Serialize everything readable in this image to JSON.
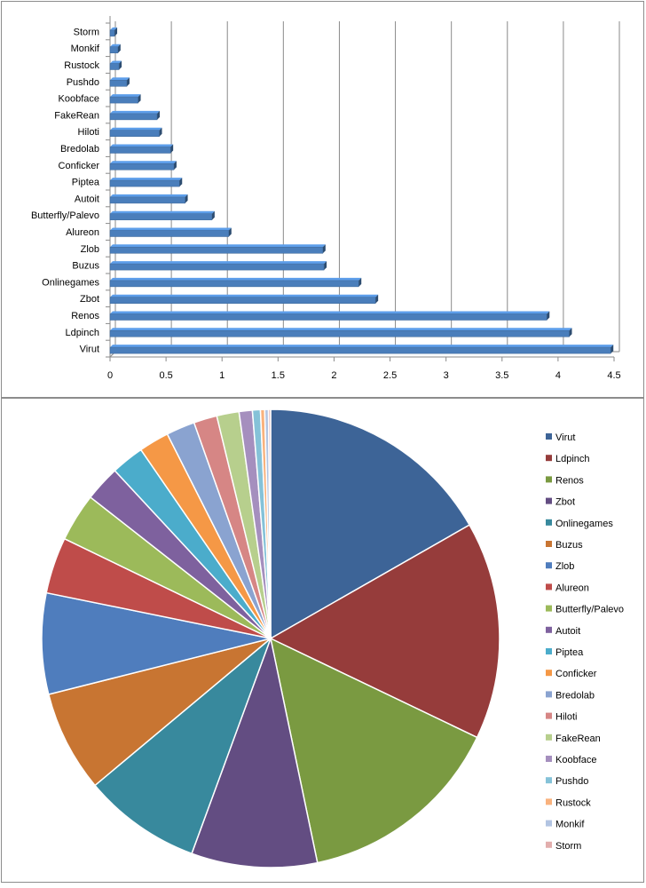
{
  "chart_data": [
    {
      "type": "bar",
      "orientation": "horizontal",
      "title": "",
      "xlabel": "",
      "ylabel": "",
      "xlim": [
        0,
        4.5
      ],
      "x_ticks": [
        "0",
        "0.5",
        "1",
        "1.5",
        "2",
        "2.5",
        "3",
        "3.5",
        "4",
        "4.5"
      ],
      "grid": true,
      "categories": [
        "Virut",
        "Ldpinch",
        "Renos",
        "Zbot",
        "Onlinegames",
        "Buzus",
        "Zlob",
        "Alureon",
        "Butterfly/Palevo",
        "Autoit",
        "Piptea",
        "Conficker",
        "Bredolab",
        "Hiloti",
        "FakeRean",
        "Koobface",
        "Pushdo",
        "Rustock",
        "Monkif",
        "Storm"
      ],
      "values": [
        4.47,
        4.1,
        3.9,
        2.37,
        2.22,
        1.91,
        1.9,
        1.06,
        0.91,
        0.67,
        0.62,
        0.57,
        0.54,
        0.44,
        0.42,
        0.25,
        0.15,
        0.08,
        0.07,
        0.04
      ],
      "bar_color": "#4a7ebb"
    },
    {
      "type": "pie",
      "title": "",
      "legend_position": "right",
      "labels": [
        "Virut",
        "Ldpinch",
        "Renos",
        "Zbot",
        "Onlinegames",
        "Buzus",
        "Zlob",
        "Alureon",
        "Butterfly/Palevo",
        "Autoit",
        "Piptea",
        "Conficker",
        "Bredolab",
        "Hiloti",
        "FakeRean",
        "Koobface",
        "Pushdo",
        "Rustock",
        "Monkif",
        "Storm"
      ],
      "values": [
        4.47,
        4.1,
        3.9,
        2.37,
        2.22,
        1.91,
        1.9,
        1.06,
        0.91,
        0.67,
        0.62,
        0.57,
        0.54,
        0.44,
        0.42,
        0.25,
        0.15,
        0.08,
        0.07,
        0.04
      ],
      "colors": [
        "#3d6497",
        "#963c3b",
        "#7a9a41",
        "#634d82",
        "#38899d",
        "#c87532",
        "#4f7dbd",
        "#bf4c4a",
        "#9cba5a",
        "#7e619e",
        "#4baccb",
        "#f59846",
        "#8aa3d0",
        "#d68685",
        "#b7cf8d",
        "#a58fbe",
        "#85c2d8",
        "#f9b27d",
        "#b2c4e2",
        "#e2aead"
      ]
    }
  ]
}
